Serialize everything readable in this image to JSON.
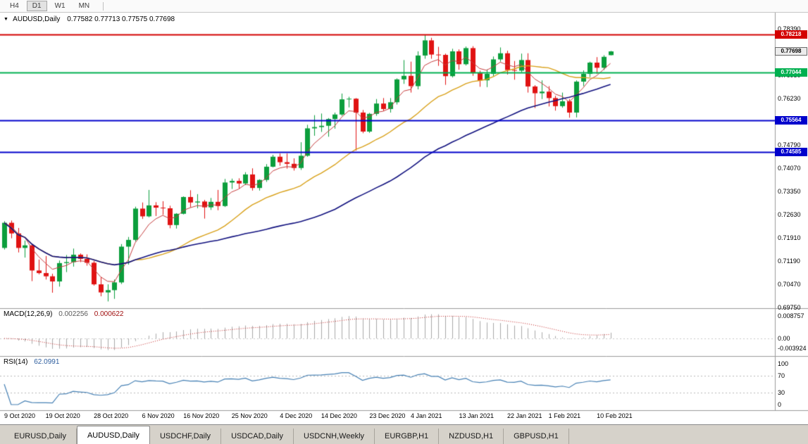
{
  "toolbar": {
    "timeframes": [
      "H4",
      "D1",
      "W1",
      "MN"
    ],
    "active_timeframe": "D1"
  },
  "chart_header": {
    "symbol": "AUDUSD,Daily",
    "ohlc": "0.77582 0.77713 0.77575 0.77698"
  },
  "macd_header": {
    "title": "MACD(12,26,9)",
    "main_value": "0.002256",
    "signal_value": "0.000622"
  },
  "rsi_header": {
    "title": "RSI(14)",
    "value": "62.0991"
  },
  "chart_data": {
    "type": "candlestick",
    "symbol": "AUDUSD",
    "timeframe": "Daily",
    "ohlc_display": {
      "open": "0.77582",
      "high": "0.77713",
      "low": "0.77575",
      "close": "0.77698"
    },
    "ylim": [
      0.6973,
      0.789
    ],
    "colors": {
      "up": "#0b9e3c",
      "down": "#e01212"
    },
    "y_axis_labels": [
      "0.78390",
      "0.77670",
      "0.76950",
      "0.76230",
      "0.75510",
      "0.74790",
      "0.74070",
      "0.73350",
      "0.72630",
      "0.71910",
      "0.71190",
      "0.70470",
      "0.69750"
    ],
    "x_axis_labels": [
      {
        "label": "9 Oct 2020",
        "bar": 0
      },
      {
        "label": "19 Oct 2020",
        "bar": 6
      },
      {
        "label": "28 Oct 2020",
        "bar": 13
      },
      {
        "label": "6 Nov 2020",
        "bar": 20
      },
      {
        "label": "16 Nov 2020",
        "bar": 26
      },
      {
        "label": "25 Nov 2020",
        "bar": 33
      },
      {
        "label": "4 Dec 2020",
        "bar": 40
      },
      {
        "label": "14 Dec 2020",
        "bar": 46
      },
      {
        "label": "23 Dec 2020",
        "bar": 53
      },
      {
        "label": "4 Jan 2021",
        "bar": 59
      },
      {
        "label": "13 Jan 2021",
        "bar": 66
      },
      {
        "label": "22 Jan 2021",
        "bar": 73
      },
      {
        "label": "1 Feb 2021",
        "bar": 79
      },
      {
        "label": "10 Feb 2021",
        "bar": 86
      }
    ],
    "hlines": [
      {
        "price": 0.78218,
        "color": "#d40000",
        "label": "0.78218"
      },
      {
        "price": 0.77044,
        "color": "#00b050",
        "label": "0.77044"
      },
      {
        "price": 0.75564,
        "color": "#0000cc",
        "label": "0.75564"
      },
      {
        "price": 0.74585,
        "color": "#0000cc",
        "label": "0.74585"
      }
    ],
    "current_price": {
      "value": 0.77698,
      "label": "0.77698"
    },
    "moving_averages": [
      {
        "method": "ema",
        "period": 5,
        "color": "#c43c3c",
        "width": 1
      },
      {
        "method": "sma",
        "period": 20,
        "color": "#d8a018",
        "width": 1.4
      },
      {
        "method": "sma",
        "period": 45,
        "color": "#10107e",
        "width": 1.6
      }
    ],
    "indicators": [
      {
        "name": "MACD",
        "params": [
          12,
          26,
          9
        ],
        "title": "MACD(12,26,9)",
        "histogram_color": "#a8a8a8",
        "signal_color": "#c02020",
        "scale_labels": [
          {
            "text": "0.008757",
            "value": 0.008757
          },
          {
            "text": "0.00",
            "value": 0
          },
          {
            "text": "-0.003924",
            "value": -0.003924
          }
        ]
      },
      {
        "name": "RSI",
        "params": [
          14
        ],
        "title": "RSI(14)",
        "line_color": "#4680b4",
        "levels": [
          70,
          30
        ],
        "scale_labels": [
          {
            "text": "100",
            "value": 100
          },
          {
            "text": "70",
            "value": 70
          },
          {
            "text": "30",
            "value": 30
          },
          {
            "text": "0",
            "value": 0
          }
        ]
      }
    ],
    "dates": [
      "2020-10-09",
      "2020-10-12",
      "2020-10-13",
      "2020-10-14",
      "2020-10-15",
      "2020-10-16",
      "2020-10-19",
      "2020-10-20",
      "2020-10-21",
      "2020-10-22",
      "2020-10-23",
      "2020-10-26",
      "2020-10-27",
      "2020-10-28",
      "2020-10-29",
      "2020-10-30",
      "2020-11-02",
      "2020-11-03",
      "2020-11-04",
      "2020-11-05",
      "2020-11-06",
      "2020-11-09",
      "2020-11-10",
      "2020-11-11",
      "2020-11-12",
      "2020-11-13",
      "2020-11-16",
      "2020-11-17",
      "2020-11-18",
      "2020-11-19",
      "2020-11-20",
      "2020-11-23",
      "2020-11-24",
      "2020-11-25",
      "2020-11-26",
      "2020-11-27",
      "2020-11-30",
      "2020-12-01",
      "2020-12-02",
      "2020-12-03",
      "2020-12-04",
      "2020-12-07",
      "2020-12-08",
      "2020-12-09",
      "2020-12-10",
      "2020-12-11",
      "2020-12-14",
      "2020-12-15",
      "2020-12-16",
      "2020-12-17",
      "2020-12-18",
      "2020-12-21",
      "2020-12-22",
      "2020-12-23",
      "2020-12-24",
      "2020-12-28",
      "2020-12-29",
      "2020-12-30",
      "2020-12-31",
      "2021-01-04",
      "2021-01-05",
      "2021-01-06",
      "2021-01-07",
      "2021-01-08",
      "2021-01-11",
      "2021-01-12",
      "2021-01-13",
      "2021-01-14",
      "2021-01-15",
      "2021-01-18",
      "2021-01-19",
      "2021-01-20",
      "2021-01-21",
      "2021-01-22",
      "2021-01-25",
      "2021-01-26",
      "2021-01-27",
      "2021-01-28",
      "2021-01-29",
      "2021-02-01",
      "2021-02-02",
      "2021-02-03",
      "2021-02-04",
      "2021-02-05",
      "2021-02-08",
      "2021-02-09",
      "2021-02-10",
      "2021-02-11",
      "2021-02-12"
    ],
    "candles": [
      [
        0.716,
        0.7243,
        0.7155,
        0.7238
      ],
      [
        0.7238,
        0.7245,
        0.719,
        0.7205
      ],
      [
        0.7205,
        0.7222,
        0.7146,
        0.716
      ],
      [
        0.716,
        0.7183,
        0.713,
        0.7168
      ],
      [
        0.7168,
        0.7172,
        0.7057,
        0.709
      ],
      [
        0.709,
        0.7124,
        0.7078,
        0.7082
      ],
      [
        0.7082,
        0.7135,
        0.7062,
        0.7072
      ],
      [
        0.7072,
        0.708,
        0.7021,
        0.7056
      ],
      [
        0.7056,
        0.7121,
        0.704,
        0.7113
      ],
      [
        0.7113,
        0.7138,
        0.7085,
        0.7116
      ],
      [
        0.7116,
        0.7158,
        0.7102,
        0.7139
      ],
      [
        0.7139,
        0.7143,
        0.7116,
        0.7126
      ],
      [
        0.7126,
        0.714,
        0.7105,
        0.7114
      ],
      [
        0.7114,
        0.712,
        0.7043,
        0.7047
      ],
      [
        0.7047,
        0.7069,
        0.701,
        0.7022
      ],
      [
        0.7022,
        0.7047,
        0.6994,
        0.7029
      ],
      [
        0.7029,
        0.7062,
        0.7002,
        0.7053
      ],
      [
        0.7053,
        0.7172,
        0.7048,
        0.7164
      ],
      [
        0.7164,
        0.7194,
        0.7108,
        0.7185
      ],
      [
        0.7185,
        0.7288,
        0.718,
        0.7282
      ],
      [
        0.7282,
        0.7301,
        0.725,
        0.7258
      ],
      [
        0.7258,
        0.734,
        0.7255,
        0.7292
      ],
      [
        0.7292,
        0.7302,
        0.7259,
        0.7285
      ],
      [
        0.7285,
        0.7305,
        0.7263,
        0.7283
      ],
      [
        0.7283,
        0.7291,
        0.7221,
        0.7231
      ],
      [
        0.7231,
        0.7268,
        0.722,
        0.7266
      ],
      [
        0.7266,
        0.732,
        0.7264,
        0.7318
      ],
      [
        0.7318,
        0.7339,
        0.7286,
        0.7301
      ],
      [
        0.7301,
        0.7327,
        0.7283,
        0.7304
      ],
      [
        0.7304,
        0.7309,
        0.7251,
        0.7286
      ],
      [
        0.7286,
        0.7315,
        0.7278,
        0.7303
      ],
      [
        0.7303,
        0.734,
        0.7277,
        0.729
      ],
      [
        0.729,
        0.7374,
        0.7287,
        0.7363
      ],
      [
        0.7363,
        0.7375,
        0.7343,
        0.7368
      ],
      [
        0.7368,
        0.7376,
        0.7344,
        0.736
      ],
      [
        0.736,
        0.7395,
        0.7355,
        0.7388
      ],
      [
        0.7388,
        0.7407,
        0.7338,
        0.7346
      ],
      [
        0.7346,
        0.7373,
        0.7338,
        0.7371
      ],
      [
        0.7371,
        0.742,
        0.7365,
        0.7412
      ],
      [
        0.7412,
        0.7449,
        0.741,
        0.7443
      ],
      [
        0.7443,
        0.7453,
        0.7415,
        0.7426
      ],
      [
        0.7426,
        0.7453,
        0.7406,
        0.7421
      ],
      [
        0.7421,
        0.7438,
        0.74,
        0.7408
      ],
      [
        0.7408,
        0.7488,
        0.7402,
        0.7446
      ],
      [
        0.7446,
        0.7542,
        0.7443,
        0.7531
      ],
      [
        0.7531,
        0.7572,
        0.7508,
        0.7535
      ],
      [
        0.7535,
        0.7577,
        0.752,
        0.7539
      ],
      [
        0.7539,
        0.7563,
        0.7505,
        0.756
      ],
      [
        0.756,
        0.758,
        0.753,
        0.7574
      ],
      [
        0.7574,
        0.7639,
        0.757,
        0.7621
      ],
      [
        0.7621,
        0.7629,
        0.7596,
        0.7623
      ],
      [
        0.7623,
        0.7625,
        0.7462,
        0.758
      ],
      [
        0.758,
        0.7588,
        0.7516,
        0.7521
      ],
      [
        0.7521,
        0.7579,
        0.7517,
        0.7576
      ],
      [
        0.7576,
        0.7622,
        0.757,
        0.7608
      ],
      [
        0.7608,
        0.7625,
        0.7585,
        0.7591
      ],
      [
        0.7591,
        0.7625,
        0.758,
        0.7612
      ],
      [
        0.7612,
        0.7686,
        0.7605,
        0.7683
      ],
      [
        0.7683,
        0.7743,
        0.7669,
        0.7694
      ],
      [
        0.7694,
        0.7738,
        0.7642,
        0.7662
      ],
      [
        0.7662,
        0.777,
        0.7652,
        0.7757
      ],
      [
        0.7757,
        0.782,
        0.7747,
        0.7804
      ],
      [
        0.7804,
        0.7812,
        0.7747,
        0.776
      ],
      [
        0.776,
        0.7784,
        0.7725,
        0.7759
      ],
      [
        0.7759,
        0.7763,
        0.7666,
        0.7693
      ],
      [
        0.7693,
        0.7778,
        0.7689,
        0.777
      ],
      [
        0.777,
        0.7776,
        0.7713,
        0.773
      ],
      [
        0.773,
        0.7785,
        0.7726,
        0.778
      ],
      [
        0.778,
        0.7786,
        0.7694,
        0.7702
      ],
      [
        0.7702,
        0.771,
        0.766,
        0.768
      ],
      [
        0.768,
        0.7714,
        0.7659,
        0.77
      ],
      [
        0.77,
        0.7754,
        0.7693,
        0.7745
      ],
      [
        0.7745,
        0.7782,
        0.7738,
        0.7764
      ],
      [
        0.7764,
        0.7772,
        0.7698,
        0.7712
      ],
      [
        0.7712,
        0.774,
        0.7682,
        0.771
      ],
      [
        0.771,
        0.7763,
        0.7705,
        0.7743
      ],
      [
        0.7743,
        0.7764,
        0.7642,
        0.7661
      ],
      [
        0.7661,
        0.7665,
        0.7594,
        0.764
      ],
      [
        0.764,
        0.768,
        0.7622,
        0.7645
      ],
      [
        0.7645,
        0.7662,
        0.7599,
        0.7625
      ],
      [
        0.7625,
        0.7632,
        0.7586,
        0.76
      ],
      [
        0.76,
        0.7642,
        0.7595,
        0.7615
      ],
      [
        0.7615,
        0.7622,
        0.7564,
        0.758
      ],
      [
        0.758,
        0.768,
        0.7565,
        0.7676
      ],
      [
        0.7676,
        0.7711,
        0.7662,
        0.77
      ],
      [
        0.77,
        0.7738,
        0.769,
        0.7735
      ],
      [
        0.7735,
        0.7752,
        0.77,
        0.7719
      ],
      [
        0.7719,
        0.7758,
        0.7712,
        0.7753
      ],
      [
        0.77582,
        0.77713,
        0.77575,
        0.77698
      ]
    ]
  },
  "tab_bar": {
    "tabs": [
      {
        "label": "EURUSD,Daily",
        "active": false
      },
      {
        "label": "AUDUSD,Daily",
        "active": true
      },
      {
        "label": "USDCHF,Daily",
        "active": false
      },
      {
        "label": "USDCAD,Daily",
        "active": false
      },
      {
        "label": "USDCNH,Weekly",
        "active": false
      },
      {
        "label": "EURGBP,H1",
        "active": false
      },
      {
        "label": "NZDUSD,H1",
        "active": false
      },
      {
        "label": "GBPUSD,H1",
        "active": false
      }
    ]
  }
}
